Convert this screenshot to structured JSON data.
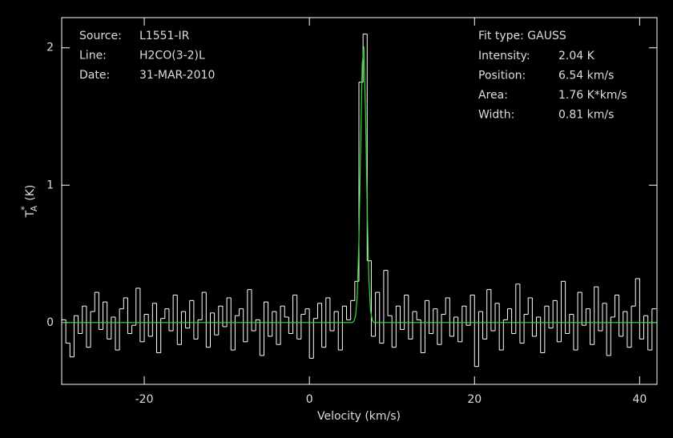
{
  "chart_data": {
    "type": "step",
    "xlabel": "Velocity (km/s)",
    "ylabel": {
      "base": "T",
      "sub": "A",
      "sup": "*",
      "unit": "(K)"
    },
    "info_left": [
      {
        "label": "Source:",
        "value": "L1551-IR"
      },
      {
        "label": "Line:",
        "value": "H2CO(3-2)L"
      },
      {
        "label": "Date:",
        "value": "31-MAR-2010"
      }
    ],
    "fit_type": "Fit type: GAUSS",
    "info_right": [
      {
        "label": "Intensity:",
        "value": "2.04 K"
      },
      {
        "label": "Position:",
        "value": "6.54 km/s"
      },
      {
        "label": "Area:",
        "value": "1.76 K*km/s"
      },
      {
        "label": "Width:",
        "value": "0.81 km/s"
      }
    ],
    "xlim": [
      -30,
      42.1
    ],
    "ylim": [
      -0.45,
      2.22
    ],
    "xticks": [
      -20,
      0,
      20,
      40
    ],
    "yticks": [
      0,
      1,
      2
    ],
    "series": [
      {
        "color": "#ffffff",
        "x": [
          -29.75,
          -29.25,
          -28.75,
          -28.25,
          -27.75,
          -27.25,
          -26.75,
          -26.25,
          -25.75,
          -25.25,
          -24.75,
          -24.25,
          -23.75,
          -23.25,
          -22.75,
          -22.25,
          -21.75,
          -21.25,
          -20.75,
          -20.25,
          -19.75,
          -19.25,
          -18.75,
          -18.25,
          -17.75,
          -17.25,
          -16.75,
          -16.25,
          -15.75,
          -15.25,
          -14.75,
          -14.25,
          -13.75,
          -13.25,
          -12.75,
          -12.25,
          -11.75,
          -11.25,
          -10.75,
          -10.25,
          -9.75,
          -9.25,
          -8.75,
          -8.25,
          -7.75,
          -7.25,
          -6.75,
          -6.25,
          -5.75,
          -5.25,
          -4.75,
          -4.25,
          -3.75,
          -3.25,
          -2.75,
          -2.25,
          -1.75,
          -1.25,
          -0.75,
          -0.25,
          0.25,
          0.75,
          1.25,
          1.75,
          2.25,
          2.75,
          3.25,
          3.75,
          4.25,
          4.75,
          5.25,
          5.75,
          6.25,
          6.75,
          7.25,
          7.75,
          8.25,
          8.75,
          9.25,
          9.75,
          10.25,
          10.75,
          11.25,
          11.75,
          12.25,
          12.75,
          13.25,
          13.75,
          14.25,
          14.75,
          15.25,
          15.75,
          16.25,
          16.75,
          17.25,
          17.75,
          18.25,
          18.75,
          19.25,
          19.75,
          20.25,
          20.75,
          21.25,
          21.75,
          22.25,
          22.75,
          23.25,
          23.75,
          24.25,
          24.75,
          25.25,
          25.75,
          26.25,
          26.75,
          27.25,
          27.75,
          28.25,
          28.75,
          29.25,
          29.75,
          30.25,
          30.75,
          31.25,
          31.75,
          32.25,
          32.75,
          33.25,
          33.75,
          34.25,
          34.75,
          35.25,
          35.75,
          36.25,
          36.75,
          37.25,
          37.75,
          38.25,
          38.75,
          39.25,
          39.75,
          40.25,
          40.75,
          41.25,
          41.75
        ],
        "values": [
          0.02,
          -0.15,
          -0.25,
          0.05,
          -0.08,
          0.12,
          -0.18,
          0.08,
          0.22,
          -0.05,
          0.15,
          -0.12,
          0.04,
          -0.2,
          0.1,
          0.18,
          -0.08,
          -0.02,
          0.25,
          -0.14,
          0.06,
          -0.1,
          0.14,
          -0.22,
          0.03,
          0.1,
          -0.06,
          0.2,
          -0.16,
          0.08,
          -0.04,
          0.16,
          -0.12,
          0.02,
          0.22,
          -0.18,
          0.07,
          -0.09,
          0.12,
          -0.03,
          0.18,
          -0.2,
          0.05,
          0.1,
          -0.14,
          0.24,
          -0.06,
          0.02,
          -0.24,
          0.15,
          -0.1,
          0.08,
          -0.16,
          0.12,
          0.04,
          -0.08,
          0.2,
          -0.12,
          0.06,
          0.1,
          -0.26,
          0.03,
          0.14,
          -0.18,
          0.18,
          -0.06,
          0.08,
          -0.2,
          0.12,
          0.02,
          0.16,
          0.3,
          1.75,
          2.1,
          0.45,
          -0.1,
          0.22,
          -0.15,
          0.38,
          0.05,
          -0.18,
          0.12,
          -0.05,
          0.2,
          -0.12,
          0.08,
          0.02,
          -0.22,
          0.16,
          -0.08,
          0.1,
          -0.16,
          0.06,
          0.18,
          -0.1,
          0.04,
          -0.14,
          0.12,
          -0.02,
          0.2,
          -0.32,
          0.08,
          -0.12,
          0.24,
          -0.06,
          0.14,
          -0.2,
          0.02,
          0.1,
          -0.08,
          0.28,
          -0.15,
          0.06,
          0.18,
          -0.1,
          0.04,
          -0.22,
          0.12,
          -0.04,
          0.16,
          -0.14,
          0.3,
          -0.08,
          0.06,
          -0.2,
          0.22,
          -0.02,
          0.1,
          -0.16,
          0.26,
          -0.06,
          0.14,
          -0.24,
          0.04,
          0.2,
          -0.1,
          0.08,
          -0.18,
          0.12,
          0.32,
          -0.12,
          0.05,
          -0.2,
          0.1
        ]
      },
      {
        "color": "#33dd33",
        "x": [
          -30,
          5.0,
          5.2,
          5.4,
          5.6,
          5.8,
          6.0,
          6.2,
          6.4,
          6.6,
          6.8,
          7.0,
          7.2,
          7.4,
          7.6,
          7.8,
          8.0,
          42.1
        ],
        "values": [
          0,
          0,
          0,
          0.01,
          0.05,
          0.2,
          0.6,
          1.25,
          1.88,
          2.01,
          1.53,
          0.83,
          0.32,
          0.09,
          0.02,
          0,
          0,
          0
        ]
      }
    ]
  }
}
